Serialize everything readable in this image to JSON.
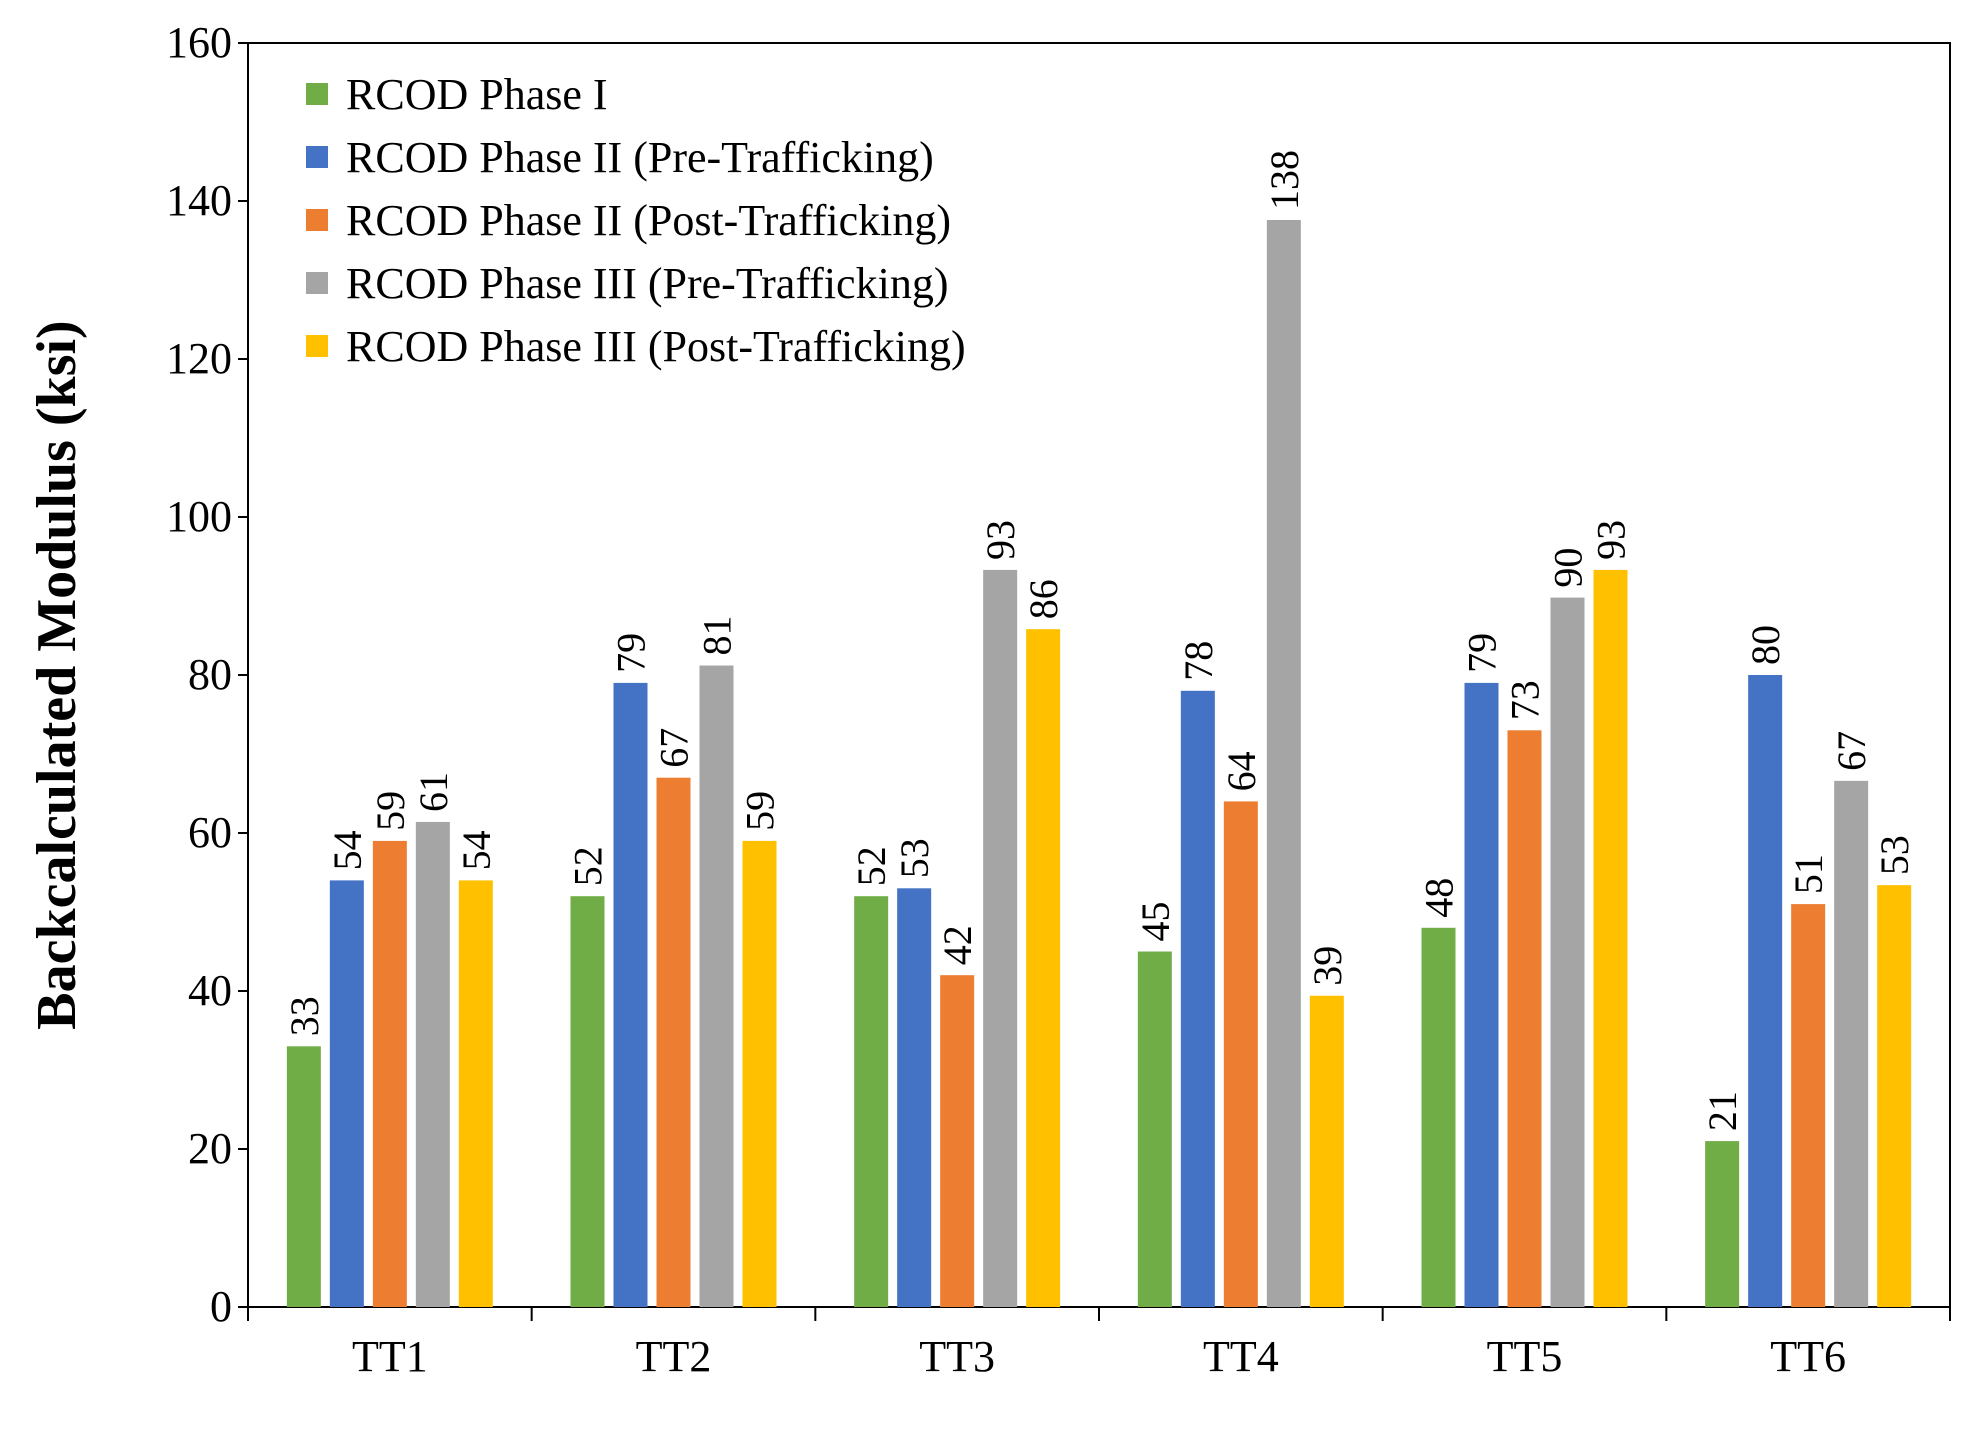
{
  "chart_data": {
    "type": "bar",
    "title": "",
    "xlabel": "",
    "ylabel": "Backcalculated Modulus (ksi)",
    "ylim": [
      0,
      160
    ],
    "yticks": [
      0,
      20,
      40,
      60,
      80,
      100,
      120,
      140,
      160
    ],
    "categories": [
      "TT1",
      "TT2",
      "TT3",
      "TT4",
      "TT5",
      "TT6"
    ],
    "legend_position": "top-left",
    "series": [
      {
        "name": "RCOD Phase I",
        "color": "#70AD47",
        "values": [
          33,
          52,
          52,
          45,
          48,
          21
        ],
        "labels": [
          "33",
          "52",
          "52",
          "45",
          "48",
          "21"
        ]
      },
      {
        "name": "RCOD Phase II (Pre-Trafficking)",
        "color": "#4472C4",
        "values": [
          54,
          79,
          53,
          78,
          79,
          80
        ],
        "labels": [
          "54",
          "79",
          "53",
          "78",
          "79",
          "80"
        ]
      },
      {
        "name": "RCOD Phase II (Post-Trafficking)",
        "color": "#ED7D31",
        "values": [
          59,
          67,
          42,
          64,
          73,
          51
        ],
        "labels": [
          "59",
          "67",
          "42",
          "64",
          "73",
          "51"
        ]
      },
      {
        "name": "RCOD Phase III (Pre-Trafficking)",
        "color": "#A5A5A5",
        "values": [
          61.4,
          81.2,
          93.3,
          137.6,
          89.8,
          66.6
        ],
        "labels": [
          "61",
          "81",
          "93",
          "138",
          "90",
          "67"
        ]
      },
      {
        "name": "RCOD Phase III (Post-Trafficking)",
        "color": "#FFC000",
        "values": [
          54,
          59,
          85.8,
          39.4,
          93.3,
          53.4
        ],
        "labels": [
          "54",
          "59",
          "86",
          "39",
          "93",
          "53"
        ]
      }
    ]
  }
}
